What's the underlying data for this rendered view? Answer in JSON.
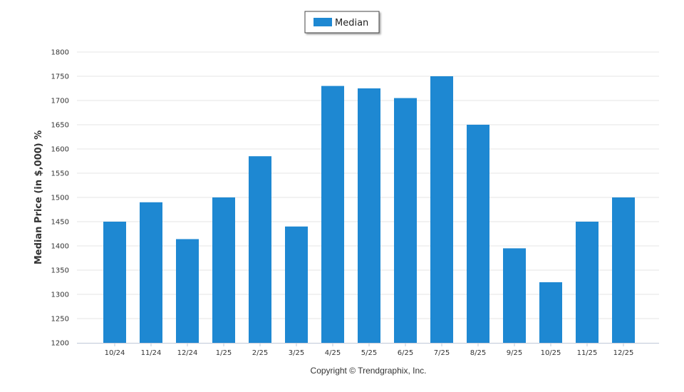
{
  "chart_data": {
    "type": "bar",
    "title": "",
    "xlabel": "",
    "ylabel": "Median Price (in $,000) %",
    "ylim": [
      1200,
      1800
    ],
    "yticks": [
      1200,
      1250,
      1300,
      1350,
      1400,
      1450,
      1500,
      1550,
      1600,
      1650,
      1700,
      1750,
      1800
    ],
    "grid": true,
    "legend_position": "top-center",
    "categories": [
      "10/24",
      "11/24",
      "12/24",
      "1/25",
      "2/25",
      "3/25",
      "4/25",
      "5/25",
      "6/25",
      "7/25",
      "8/25",
      "9/25",
      "10/25",
      "11/25",
      "12/25"
    ],
    "series": [
      {
        "name": "Median",
        "color": "#1e88d2",
        "values": [
          1450,
          1490,
          1414,
          1500,
          1585,
          1440,
          1730,
          1725,
          1705,
          1750,
          1650,
          1395,
          1325,
          1450,
          1500
        ]
      }
    ]
  },
  "footer": {
    "copyright": "Copyright © Trendgraphix, Inc."
  }
}
